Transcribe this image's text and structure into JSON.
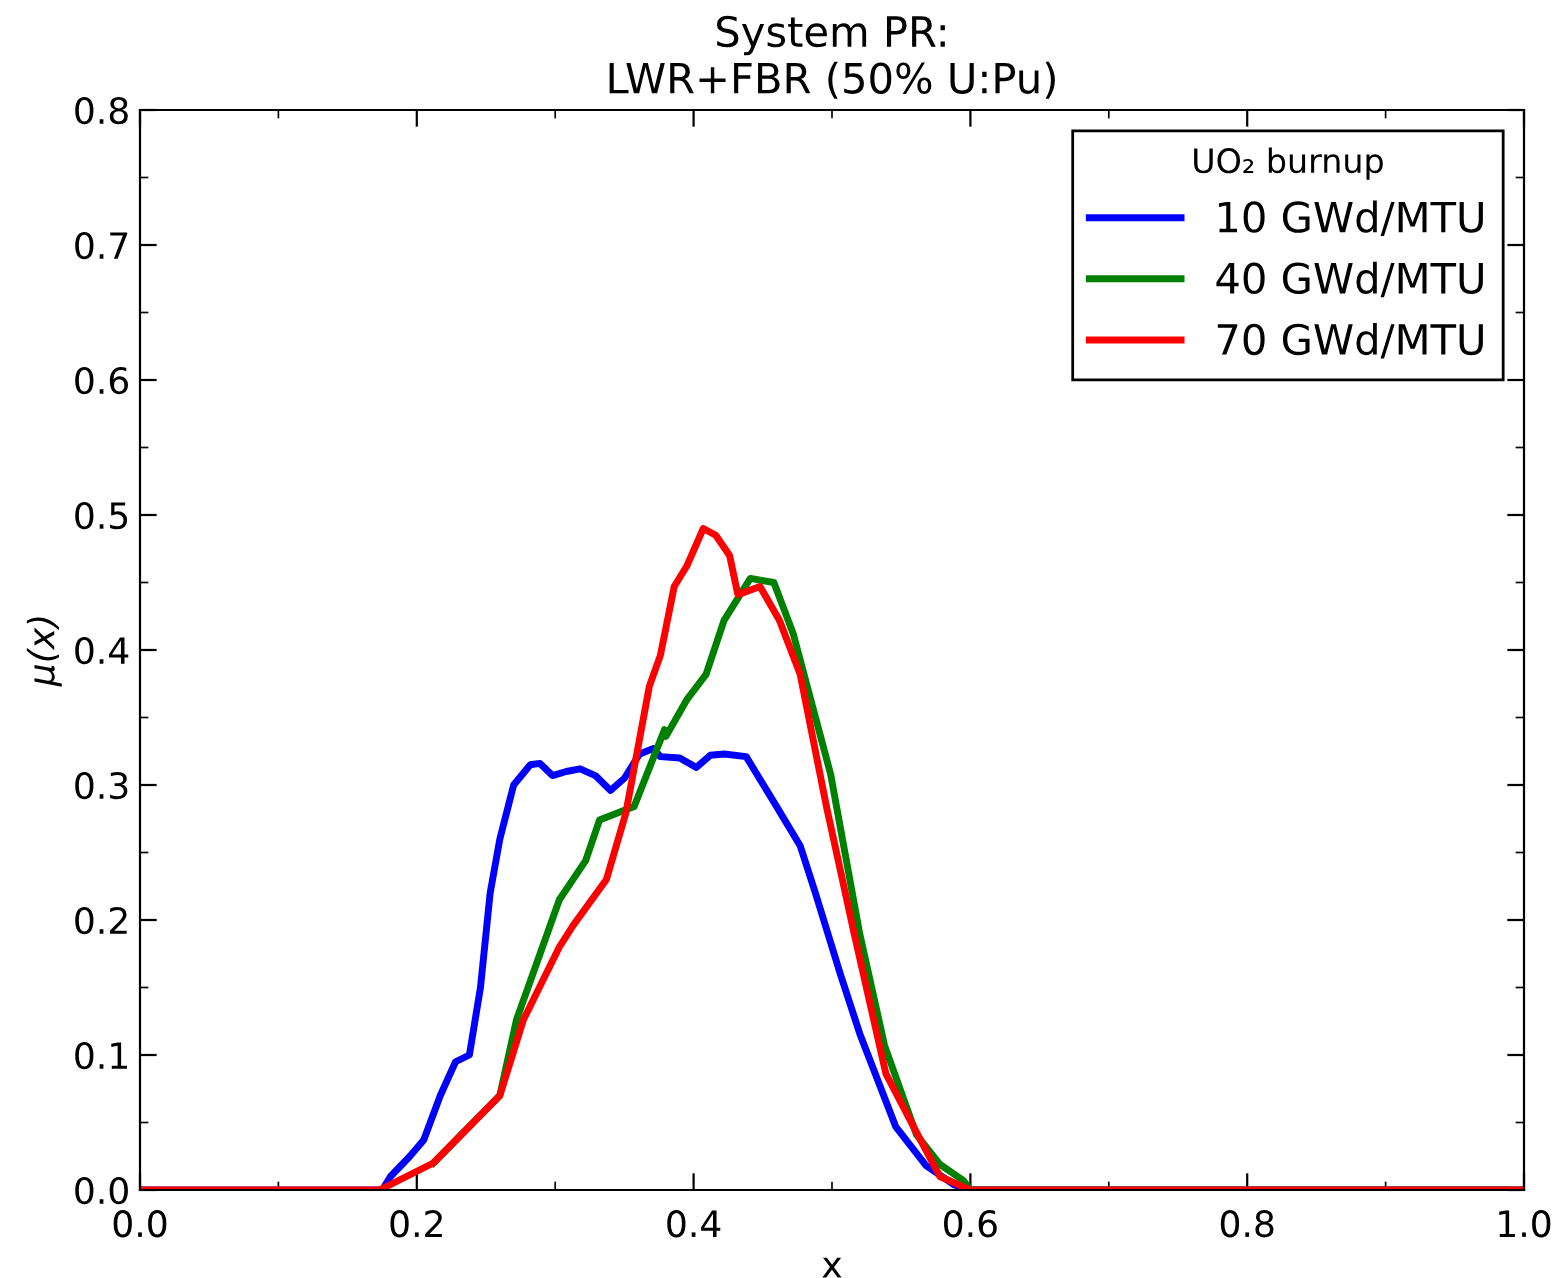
{
  "chart_data": {
    "type": "line",
    "title": "System PR:\nLWR+FBR (50% U:Pu)",
    "xlabel": "x",
    "ylabel": "μ(x)",
    "legend_title": "UO₂ burnup",
    "legend": "top right",
    "grid": false,
    "marker": "none",
    "line_style": "solid",
    "xlim": [
      0.0,
      1.0
    ],
    "ylim": [
      0.0,
      0.8
    ],
    "xticks": [
      {
        "value": 0,
        "label": "0.0"
      },
      {
        "value": 0.2,
        "label": "0.2"
      },
      {
        "value": 0.4,
        "label": "0.4"
      },
      {
        "value": 0.6,
        "label": "0.6"
      },
      {
        "value": 0.8,
        "label": "0.8"
      },
      {
        "value": 1.0,
        "label": "1.0"
      }
    ],
    "yticks": [
      {
        "value": 0,
        "label": "0.0"
      },
      {
        "value": 0.1,
        "label": "0.1"
      },
      {
        "value": 0.2,
        "label": "0.2"
      },
      {
        "value": 0.3,
        "label": "0.3"
      },
      {
        "value": 0.4,
        "label": "0.4"
      },
      {
        "value": 0.5,
        "label": "0.5"
      },
      {
        "value": 0.6,
        "label": "0.6"
      },
      {
        "value": 0.7,
        "label": "0.7"
      },
      {
        "value": 0.8,
        "label": "0.8"
      }
    ],
    "series": [
      {
        "name": "10 GWd/MTU",
        "color": "#0000ff",
        "x": [
          0,
          0.175,
          0.181,
          0.195,
          0.205,
          0.217,
          0.228,
          0.238,
          0.246,
          0.253,
          0.26,
          0.27,
          0.282,
          0.289,
          0.298,
          0.308,
          0.318,
          0.329,
          0.34,
          0.35,
          0.361,
          0.371,
          0.376,
          0.39,
          0.402,
          0.412,
          0.422,
          0.438,
          0.46,
          0.477,
          0.488,
          0.506,
          0.52,
          0.546,
          0.568,
          0.588,
          0.6,
          1.0
        ],
        "values": [
          0,
          0,
          0.01,
          0.025,
          0.037,
          0.07,
          0.095,
          0.1,
          0.15,
          0.22,
          0.26,
          0.3,
          0.315,
          0.316,
          0.307,
          0.31,
          0.312,
          0.307,
          0.296,
          0.305,
          0.323,
          0.327,
          0.321,
          0.32,
          0.313,
          0.322,
          0.323,
          0.321,
          0.284,
          0.255,
          0.22,
          0.16,
          0.116,
          0.047,
          0.018,
          0.004,
          0,
          0
        ]
      },
      {
        "name": "40 GWd/MTU",
        "color": "#008000",
        "x": [
          0.212,
          0.26,
          0.272,
          0.303,
          0.322,
          0.332,
          0.357,
          0.379,
          0.38,
          0.395,
          0.409,
          0.422,
          0.441,
          0.458,
          0.472,
          0.499,
          0.52,
          0.538,
          0.561,
          0.578,
          0.595,
          0.6,
          1.0
        ],
        "values": [
          0.02,
          0.07,
          0.126,
          0.215,
          0.244,
          0.274,
          0.284,
          0.341,
          0.336,
          0.363,
          0.382,
          0.422,
          0.453,
          0.45,
          0.412,
          0.308,
          0.19,
          0.107,
          0.041,
          0.019,
          0.007,
          0,
          0
        ]
      },
      {
        "name": "70 GWd/MTU",
        "color": "#ff0000",
        "x": [
          0,
          0.173,
          0.212,
          0.26,
          0.277,
          0.303,
          0.313,
          0.337,
          0.351,
          0.368,
          0.376,
          0.386,
          0.395,
          0.407,
          0.416,
          0.426,
          0.432,
          0.448,
          0.462,
          0.477,
          0.496,
          0.516,
          0.539,
          0.564,
          0.578,
          0.6,
          1.0
        ],
        "values": [
          0,
          0,
          0.02,
          0.07,
          0.126,
          0.18,
          0.196,
          0.23,
          0.279,
          0.373,
          0.396,
          0.447,
          0.462,
          0.49,
          0.485,
          0.47,
          0.441,
          0.447,
          0.422,
          0.382,
          0.284,
          0.19,
          0.086,
          0.037,
          0.01,
          0,
          0
        ]
      }
    ]
  }
}
